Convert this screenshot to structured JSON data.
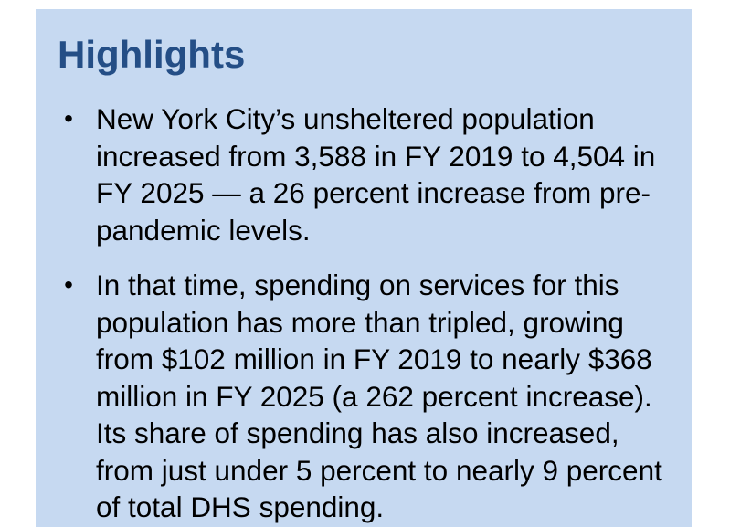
{
  "highlights": {
    "title": "Highlights",
    "bullet_symbol": "•",
    "items": [
      {
        "text": "New York City’s unsheltered population increased from 3,588 in FY 2019 to 4,504 in FY 2025 — a 26 percent increase from pre-pandemic levels."
      },
      {
        "text": "In that time, spending on services for this population has more than tripled, growing from $102 million in FY 2019 to nearly $368 million in FY 2025 (a 262 percent increase). Its share of spending has also increased, from just under 5 percent to nearly 9 percent of total DHS spending."
      }
    ]
  },
  "colors": {
    "box_background": "#c6d9f1",
    "title_color": "#244e86",
    "text_color": "#000000"
  }
}
